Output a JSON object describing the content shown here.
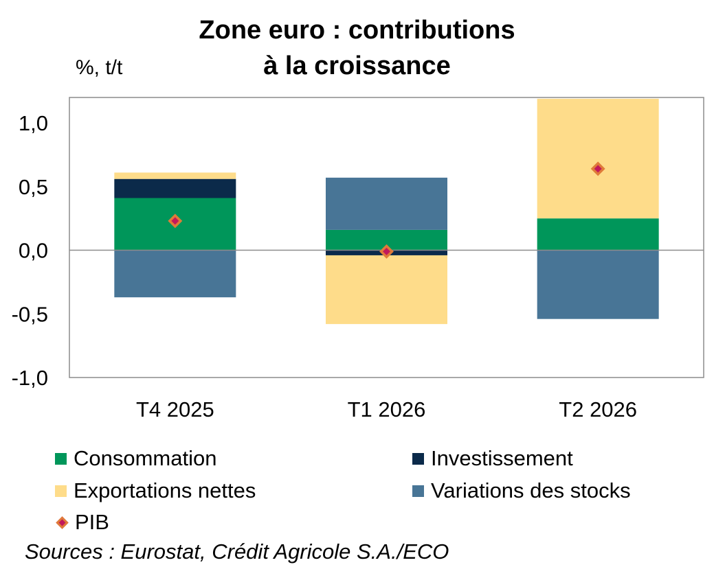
{
  "chart_data": {
    "type": "bar",
    "stacked": true,
    "title_lines": [
      "Zone euro : contributions",
      "à la croissance"
    ],
    "ylabel": "%, t/t",
    "xlabel": "",
    "categories": [
      "T4 2025",
      "T1 2026",
      "T2 2026"
    ],
    "ylim": [
      -1.0,
      1.2
    ],
    "yticks": [
      1.0,
      0.5,
      0.0,
      -0.5,
      -1.0
    ],
    "ytick_labels": [
      "1,0",
      "0,5",
      "0,0",
      "-0,5",
      "-1,0"
    ],
    "grid": false,
    "legend_position": "bottom",
    "series": [
      {
        "name": "Consommation",
        "color": "#00965a",
        "values": [
          0.41,
          0.16,
          0.25
        ]
      },
      {
        "name": "Investissement",
        "color": "#0b2a4a",
        "values": [
          0.15,
          -0.04,
          0.0
        ]
      },
      {
        "name": "Exportations nettes",
        "color": "#fedc8a",
        "values": [
          0.05,
          -0.54,
          0.94
        ]
      },
      {
        "name": "Variations des stocks",
        "color": "#487596",
        "values": [
          -0.37,
          0.41,
          -0.54
        ]
      }
    ],
    "line_series": {
      "name": "PIB",
      "marker": "diamond",
      "fill": "#c2185b",
      "stroke": "#e07b39",
      "values": [
        0.23,
        -0.01,
        0.64
      ]
    }
  },
  "source": "Sources : Eurostat, Crédit Agricole S.A./ECO"
}
